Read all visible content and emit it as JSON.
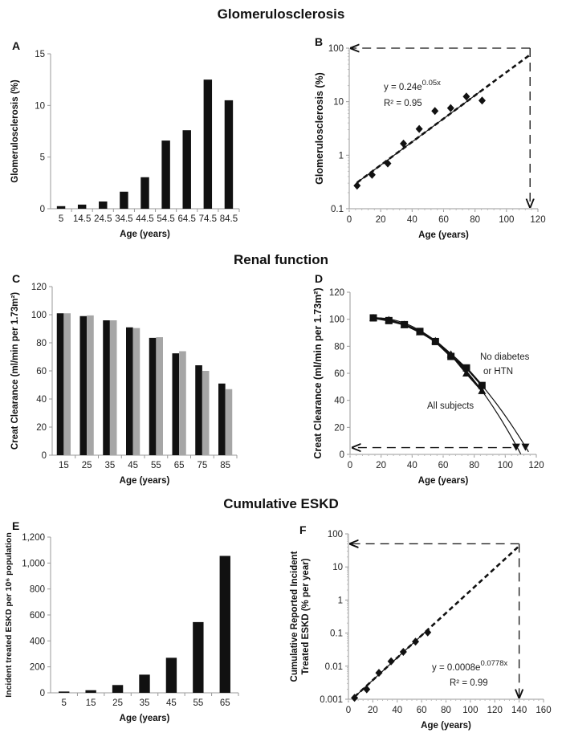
{
  "sections": [
    "Glomerulosclerosis",
    "Renal function",
    "Cumulative ESKD"
  ],
  "colors": {
    "black_series": "#111111",
    "gray_series": "#a6a6a6",
    "axis": "#999999"
  },
  "chart_data": [
    {
      "panel": "A",
      "type": "bar",
      "categories": [
        "5",
        "14.5",
        "24.5",
        "34.5",
        "44.5",
        "54.5",
        "64.5",
        "74.5",
        "84.5"
      ],
      "values": [
        0.25,
        0.4,
        0.7,
        1.65,
        3.05,
        6.6,
        7.6,
        12.5,
        10.5
      ],
      "xlabel": "Age (years)",
      "ylabel": "Glomerulosclerosis (%)",
      "ylim": [
        0,
        15
      ],
      "yticks": [
        0,
        5,
        10,
        15
      ],
      "ytick_labels": [
        "0",
        "5",
        "10",
        "15"
      ],
      "grid": false
    },
    {
      "panel": "B",
      "type": "scatter",
      "yscale": "log",
      "x": [
        5,
        14.5,
        24.5,
        34.5,
        44.5,
        54.5,
        64.5,
        74.5,
        84.5
      ],
      "y": [
        0.27,
        0.43,
        0.7,
        1.65,
        3.1,
        6.7,
        7.6,
        12.5,
        10.5
      ],
      "xlabel": "Age (years)",
      "ylabel": "Glomerulosclerosis (%)",
      "xlim": [
        0,
        120
      ],
      "ylim": [
        0.1,
        100
      ],
      "xticks": [
        0,
        20,
        40,
        60,
        80,
        100,
        120
      ],
      "xtick_labels": [
        "0",
        "20",
        "40",
        "60",
        "80",
        "100",
        "120"
      ],
      "yticks": [
        0.1,
        1,
        10,
        100
      ],
      "ytick_labels": [
        "0.1",
        "1",
        "10",
        "100"
      ],
      "fit": {
        "a": 0.24,
        "b": 0.05,
        "extrapolate_to_x": 115
      },
      "equation": {
        "base": "y = 0.24e",
        "exp": "0.05x",
        "r2": "R² = 0.95"
      },
      "grid": false
    },
    {
      "panel": "C",
      "type": "bar",
      "categories": [
        "15",
        "25",
        "35",
        "45",
        "55",
        "65",
        "75",
        "85"
      ],
      "series": [
        {
          "values": [
            101,
            99,
            96,
            91,
            83.5,
            72.5,
            64,
            51
          ],
          "color": "#111111"
        },
        {
          "values": [
            101,
            99.5,
            96,
            90.5,
            84,
            74,
            60,
            47
          ],
          "color": "#a6a6a6"
        }
      ],
      "xlabel": "Age (years)",
      "ylabel": "Creat Clearance (ml/min per 1.73m²)",
      "ylim": [
        0,
        120
      ],
      "yticks": [
        0,
        20,
        40,
        60,
        80,
        100,
        120
      ],
      "ytick_labels": [
        "0",
        "20",
        "40",
        "60",
        "80",
        "100",
        "120"
      ],
      "grid": false
    },
    {
      "panel": "D",
      "type": "line",
      "series": [
        {
          "name": "No diabetes or HTN",
          "marker": "square",
          "x": [
            15,
            25,
            35,
            45,
            55,
            65,
            75,
            85
          ],
          "y": [
            101,
            99,
            96,
            91,
            83.5,
            72.5,
            64,
            51
          ],
          "end_x": 113
        },
        {
          "name": "All subjects",
          "marker": "triangle",
          "x": [
            15,
            25,
            35,
            45,
            55,
            65,
            75,
            85
          ],
          "y": [
            101,
            99.5,
            96,
            90.5,
            84,
            74,
            60,
            47
          ],
          "end_x": 107
        }
      ],
      "labels": {
        "line1": "No diabetes",
        "line2": "or HTN",
        "all": "All subjects"
      },
      "threshold_y": 5,
      "xlabel": "Age (years)",
      "ylabel": "Creat Clearance (ml/min per 1.73m²)",
      "xlim": [
        0,
        120
      ],
      "ylim": [
        0,
        120
      ],
      "xticks": [
        0,
        20,
        40,
        60,
        80,
        100,
        120
      ],
      "xtick_labels": [
        "0",
        "20",
        "40",
        "60",
        "80",
        "100",
        "120"
      ],
      "yticks": [
        0,
        20,
        40,
        60,
        80,
        100,
        120
      ],
      "ytick_labels": [
        "0",
        "20",
        "40",
        "60",
        "80",
        "100",
        "120"
      ],
      "grid": false
    },
    {
      "panel": "E",
      "type": "bar",
      "categories": [
        "5",
        "15",
        "25",
        "35",
        "45",
        "55",
        "65"
      ],
      "values": [
        10,
        20,
        60,
        140,
        270,
        545,
        1055
      ],
      "xlabel": "Age (years)",
      "ylabel": "Incident treated ESKD per 10⁶ population",
      "ylim": [
        0,
        1200
      ],
      "yticks": [
        0,
        200,
        400,
        600,
        800,
        1000,
        1200
      ],
      "ytick_labels": [
        "0",
        "200",
        "400",
        "600",
        "800",
        "1,000",
        "1,200"
      ],
      "grid": false
    },
    {
      "panel": "F",
      "type": "scatter",
      "yscale": "log",
      "x": [
        5,
        15,
        25,
        35,
        45,
        55,
        65
      ],
      "y": [
        0.0011,
        0.002,
        0.0063,
        0.014,
        0.027,
        0.055,
        0.105
      ],
      "xlabel": "Age (years)",
      "ylabel_line1": "Cumulative Reported Incident",
      "ylabel_line2": "Treated ESKD (% per year)",
      "xlim": [
        0,
        160
      ],
      "ylim": [
        0.001,
        100
      ],
      "xticks": [
        0,
        20,
        40,
        60,
        80,
        100,
        120,
        140,
        160
      ],
      "xtick_labels": [
        "0",
        "20",
        "40",
        "60",
        "80",
        "100",
        "120",
        "140",
        "160"
      ],
      "yticks": [
        0.001,
        0.01,
        0.1,
        1,
        10,
        100
      ],
      "ytick_labels": [
        "0.001",
        "0.01",
        "0.1",
        "1",
        "10",
        "100"
      ],
      "fit": {
        "a": 0.0008,
        "b": 0.0778,
        "extrapolate_to_x": 140
      },
      "equation": {
        "base": "y = 0.0008e",
        "exp": "0.0778x",
        "r2": "R² = 0.99"
      },
      "grid": false
    }
  ]
}
